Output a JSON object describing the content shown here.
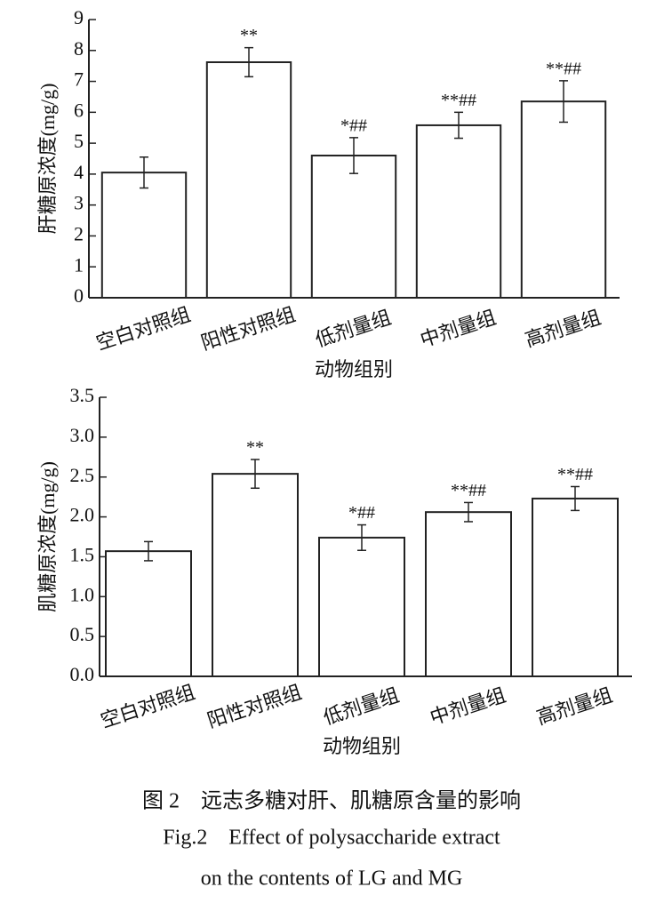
{
  "chart_data": [
    {
      "type": "bar",
      "y_label": "肝糖原浓度(mg/g)",
      "x_label": "动物组别",
      "categories": [
        "空白对照组",
        "阳性对照组",
        "低剂量组",
        "中剂量组",
        "高剂量组"
      ],
      "values": [
        4.05,
        7.62,
        4.6,
        5.58,
        6.35
      ],
      "errors": [
        0.5,
        0.47,
        0.58,
        0.42,
        0.67
      ],
      "annotations": [
        null,
        "**",
        "*##",
        "**##",
        "**##"
      ],
      "color": "#ffffff",
      "ylim": [
        0,
        9
      ],
      "yticks": [
        0,
        1,
        2,
        3,
        4,
        5,
        6,
        7,
        8,
        9
      ]
    },
    {
      "type": "bar",
      "y_label": "肌糖原浓度(mg/g)",
      "x_label": "动物组别",
      "categories": [
        "空白对照组",
        "阳性对照组",
        "低剂量组",
        "中剂量组",
        "高剂量组"
      ],
      "values": [
        1.57,
        2.54,
        1.74,
        2.06,
        2.23
      ],
      "errors": [
        0.12,
        0.18,
        0.16,
        0.12,
        0.15
      ],
      "annotations": [
        null,
        "**",
        "*##",
        "**##",
        "**##"
      ],
      "color": "#ffffff",
      "ylim": [
        0,
        3.5
      ],
      "yticks": [
        {
          "value": 0,
          "label": "0.0"
        },
        0.5,
        {
          "value": 1,
          "label": "1.0"
        },
        1.5,
        {
          "value": 2,
          "label": "2.0"
        },
        2.5,
        {
          "value": 3,
          "label": "3.0"
        },
        3.5
      ]
    }
  ],
  "caption": [
    "图 2　远志多糖对肝、肌糖原含量的影响",
    "Fig.2　Effect of polysaccharide extract",
    "on the contents of LG and MG"
  ]
}
